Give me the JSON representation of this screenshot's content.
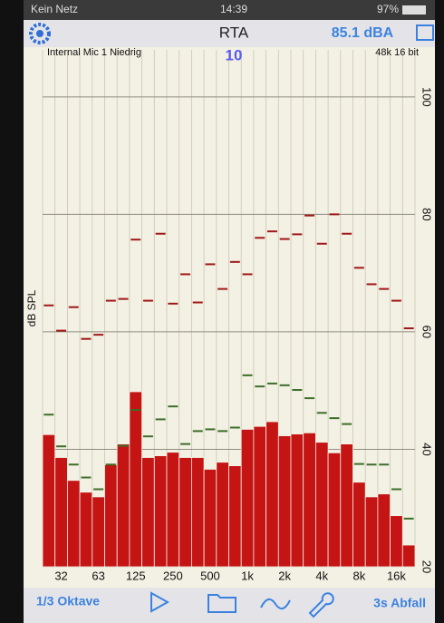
{
  "status_bar": {
    "carrier": "Kein Netz",
    "time": "14:39",
    "battery": "97%"
  },
  "toolbar": {
    "title": "RTA",
    "level": "85.1 dBA"
  },
  "chart_data": {
    "type": "bar",
    "info_left": "Internal Mic 1 Niedrig",
    "info_center": "10",
    "info_right": "48k 16 bit",
    "y_label": "dB SPL",
    "categories": [
      null,
      "32",
      null,
      null,
      "63",
      null,
      null,
      "125",
      null,
      null,
      "250",
      null,
      null,
      "500",
      null,
      null,
      "1k",
      null,
      null,
      "2k",
      null,
      null,
      "4k",
      null,
      null,
      "8k",
      null,
      null,
      "16k",
      null
    ],
    "series": [
      {
        "type": "bar",
        "color": "#c41414",
        "values": [
          42.5,
          38.6,
          34.7,
          32.7,
          31.9,
          37.4,
          40.9,
          49.8,
          38.6,
          38.9,
          39.5,
          38.6,
          38.6,
          36.6,
          37.8,
          37.2,
          43.4,
          43.9,
          44.7,
          42.3,
          42.6,
          42.8,
          41.2,
          39.4,
          40.9,
          34.4,
          31.9,
          32.4,
          28.7,
          23.7
        ]
      },
      {
        "type": "dash",
        "color": "#a01818",
        "values": [
          64.5,
          60.2,
          64.2,
          58.8,
          59.5,
          65.3,
          65.6,
          75.7,
          65.3,
          76.7,
          64.8,
          69.8,
          65.0,
          71.5,
          67.3,
          71.9,
          69.8,
          76.0,
          77.1,
          75.8,
          76.6,
          79.8,
          75.0,
          80.0,
          76.7,
          70.9,
          68.1,
          67.3,
          65.3,
          60.6
        ]
      },
      {
        "type": "dash",
        "color": "#3c6e28",
        "values": [
          45.9,
          40.5,
          37.4,
          35.2,
          33.2,
          37.4,
          40.6,
          46.7,
          42.2,
          45.1,
          47.3,
          40.9,
          43.1,
          43.4,
          43.1,
          43.7,
          52.6,
          50.7,
          51.2,
          50.9,
          50.1,
          48.7,
          46.2,
          45.3,
          44.3,
          37.5,
          37.4,
          37.4,
          33.2,
          28.2
        ]
      }
    ],
    "ylim": [
      20,
      108
    ],
    "yticks": [
      20,
      40,
      60,
      80,
      100
    ],
    "grid": true
  },
  "bottom_bar": {
    "bands": "1/3 Oktave",
    "decay": "3s Abfall"
  }
}
